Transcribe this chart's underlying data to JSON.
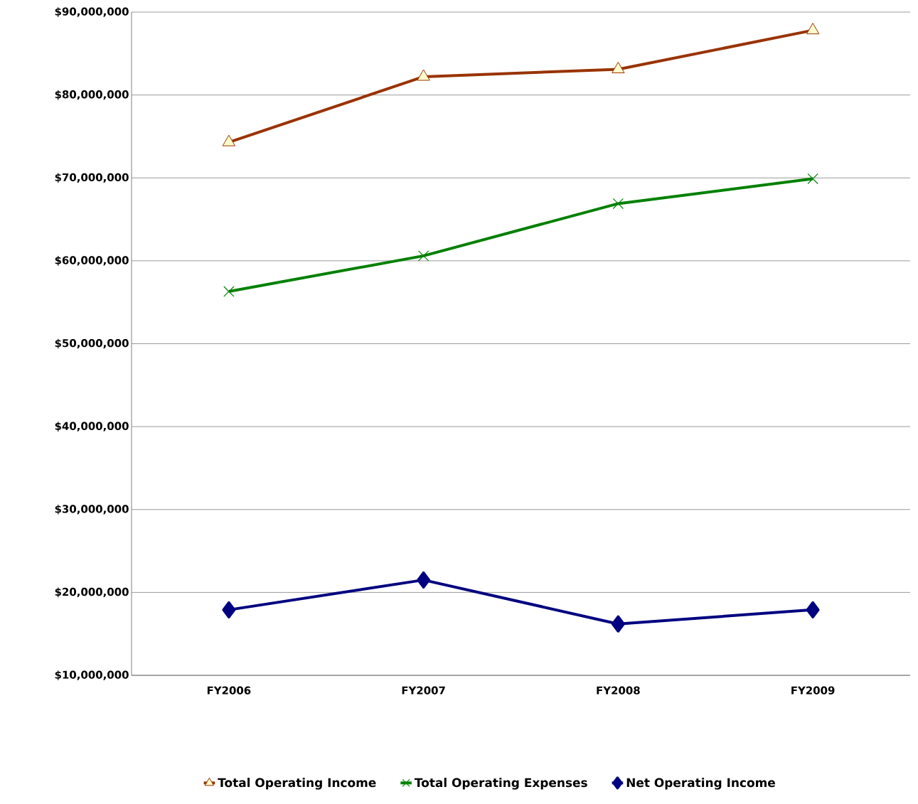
{
  "chart_data": {
    "type": "line",
    "categories": [
      "FY2006",
      "FY2007",
      "FY2008",
      "FY2009"
    ],
    "series": [
      {
        "name": "Total Operating Income",
        "color": "#993300",
        "marker": "triangle",
        "values": [
          74300000,
          82200000,
          83100000,
          87800000
        ]
      },
      {
        "name": "Total Operating Expenses",
        "color": "#008000",
        "marker": "cross",
        "values": [
          56300000,
          60600000,
          66900000,
          69900000
        ]
      },
      {
        "name": "Net Operating Income",
        "color": "#000080",
        "marker": "diamond",
        "values": [
          17900000,
          21500000,
          16200000,
          17900000
        ]
      }
    ],
    "ylim": [
      10000000,
      90000000
    ],
    "yticks": [
      {
        "value": 10000000,
        "label": "$10,000,000"
      },
      {
        "value": 20000000,
        "label": "$20,000,000"
      },
      {
        "value": 30000000,
        "label": "$30,000,000"
      },
      {
        "value": 40000000,
        "label": "$40,000,000"
      },
      {
        "value": 50000000,
        "label": "$50,000,000"
      },
      {
        "value": 60000000,
        "label": "$60,000,000"
      },
      {
        "value": 70000000,
        "label": "$70,000,000"
      },
      {
        "value": 80000000,
        "label": "$80,000,000"
      },
      {
        "value": 90000000,
        "label": "$90,000,000"
      }
    ],
    "grid": "y",
    "legend": "bottom",
    "line_style": "solid"
  }
}
